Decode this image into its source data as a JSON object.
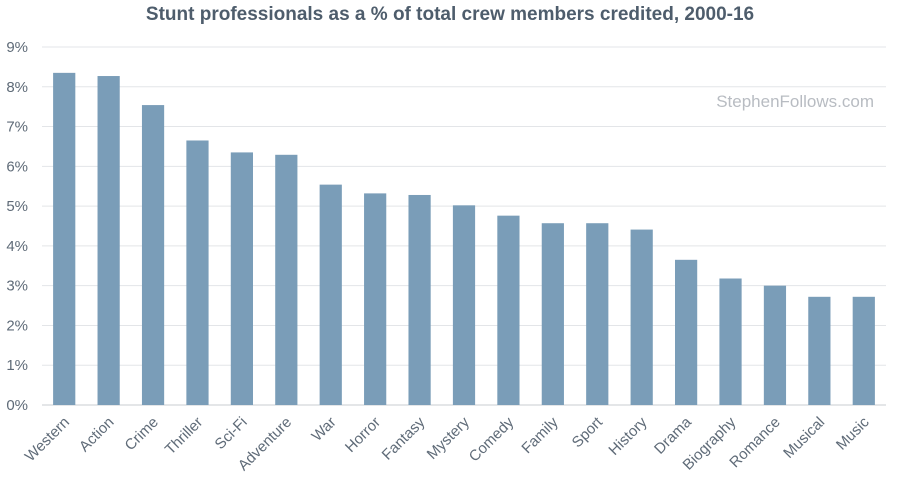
{
  "chart_data": {
    "type": "bar",
    "title": "Stunt professionals as a % of total crew members credited, 2000-16",
    "watermark": "StephenFollows.com",
    "categories": [
      "Western",
      "Action",
      "Crime",
      "Thriller",
      "Sci-Fi",
      "Adventure",
      "War",
      "Horror",
      "Fantasy",
      "Mystery",
      "Comedy",
      "Family",
      "Sport",
      "History",
      "Drama",
      "Biography",
      "Romance",
      "Musical",
      "Music"
    ],
    "values": [
      8.35,
      8.27,
      7.54,
      6.65,
      6.35,
      6.29,
      5.54,
      5.32,
      5.28,
      5.02,
      4.76,
      4.57,
      4.57,
      4.41,
      3.65,
      3.18,
      3.0,
      2.72,
      2.72
    ],
    "yticks": [
      "0%",
      "1%",
      "2%",
      "3%",
      "4%",
      "5%",
      "6%",
      "7%",
      "8%",
      "9%"
    ],
    "ylim": [
      0,
      9
    ],
    "xlabel": "",
    "ylabel": "",
    "grid": true,
    "bar_color": "#7a9db8"
  }
}
